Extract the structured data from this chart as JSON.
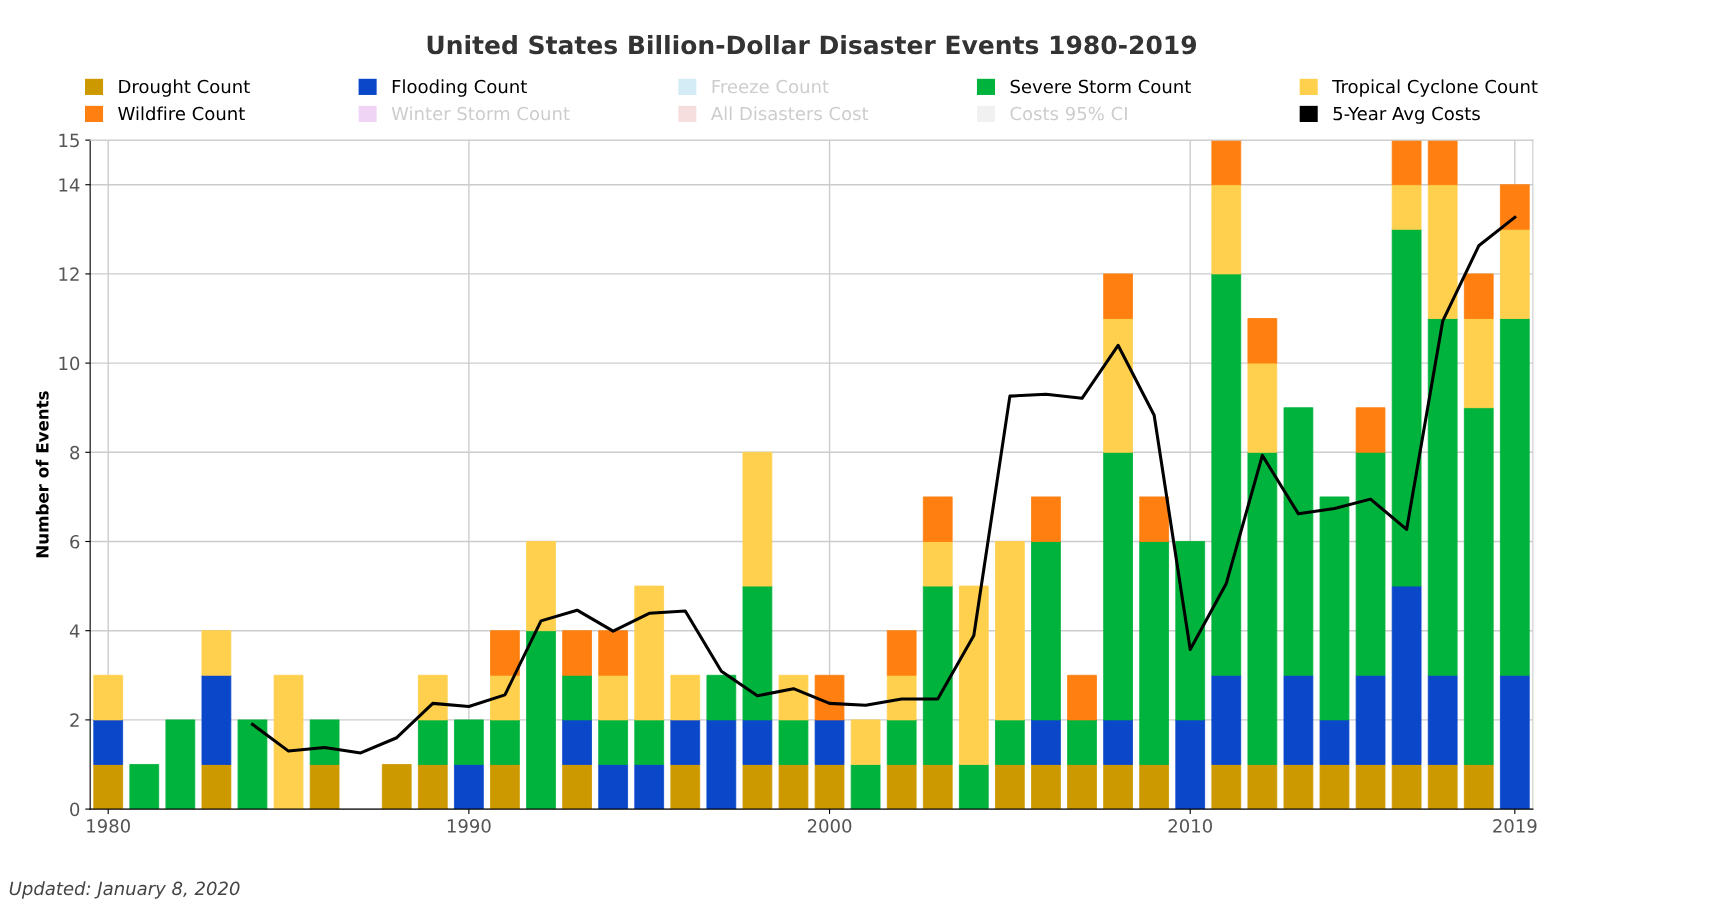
{
  "chart_data": {
    "type": "bar",
    "stacked": true,
    "title": "United States Billion-Dollar Disaster Events 1980-2019",
    "ylabel": "Number of Events",
    "x": [
      1980,
      1981,
      1982,
      1983,
      1984,
      1985,
      1986,
      1987,
      1988,
      1989,
      1990,
      1991,
      1992,
      1993,
      1994,
      1995,
      1996,
      1997,
      1998,
      1999,
      2000,
      2001,
      2002,
      2003,
      2004,
      2005,
      2006,
      2007,
      2008,
      2009,
      2010,
      2011,
      2012,
      2013,
      2014,
      2015,
      2016,
      2017,
      2018,
      2019
    ],
    "series": [
      {
        "name": "Drought Count",
        "color": "#cc9900",
        "values": [
          1,
          0,
          0,
          1,
          0,
          0,
          1,
          0,
          1,
          1,
          0,
          1,
          0,
          1,
          0,
          0,
          1,
          0,
          1,
          1,
          1,
          0,
          1,
          1,
          0,
          1,
          1,
          1,
          1,
          1,
          0,
          1,
          1,
          1,
          1,
          1,
          1,
          1,
          1,
          0
        ]
      },
      {
        "name": "Flooding Count",
        "color": "#0a47c9",
        "values": [
          1,
          0,
          0,
          2,
          0,
          0,
          0,
          0,
          0,
          0,
          1,
          0,
          0,
          1,
          1,
          1,
          1,
          2,
          1,
          0,
          1,
          0,
          0,
          0,
          0,
          0,
          1,
          0,
          1,
          0,
          2,
          2,
          0,
          2,
          1,
          2,
          4,
          2,
          0,
          3
        ]
      },
      {
        "name": "Freeze Count",
        "color": "#b8e0f0",
        "values": [
          null,
          null,
          null,
          null,
          null,
          null,
          null,
          null,
          null,
          null,
          null,
          null,
          null,
          null,
          null,
          null,
          null,
          null,
          null,
          null,
          null,
          null,
          null,
          null,
          null,
          null,
          null,
          null,
          null,
          null,
          null,
          null,
          null,
          null,
          null,
          null,
          null,
          null,
          null,
          null
        ]
      },
      {
        "name": "Severe Storm Count",
        "color": "#00b33c",
        "values": [
          0,
          1,
          2,
          0,
          2,
          0,
          1,
          0,
          0,
          1,
          1,
          1,
          4,
          1,
          1,
          1,
          0,
          1,
          3,
          1,
          0,
          1,
          1,
          4,
          1,
          1,
          4,
          1,
          6,
          5,
          4,
          9,
          7,
          6,
          5,
          5,
          8,
          8,
          8,
          8
        ]
      },
      {
        "name": "Tropical Cyclone Count",
        "color": "#ffd04d",
        "values": [
          1,
          0,
          0,
          1,
          0,
          3,
          0,
          0,
          0,
          1,
          0,
          1,
          2,
          0,
          1,
          3,
          1,
          0,
          3,
          1,
          0,
          1,
          1,
          1,
          4,
          4,
          0,
          0,
          3,
          0,
          0,
          2,
          2,
          0,
          0,
          0,
          1,
          3,
          2,
          2
        ]
      },
      {
        "name": "Wildfire Count",
        "color": "#ff8010",
        "values": [
          0,
          0,
          0,
          0,
          0,
          0,
          0,
          0,
          0,
          0,
          0,
          1,
          0,
          1,
          1,
          0,
          0,
          0,
          0,
          0,
          1,
          0,
          1,
          1,
          0,
          0,
          1,
          1,
          1,
          1,
          0,
          1,
          1,
          0,
          0,
          1,
          1,
          1,
          1,
          1
        ]
      },
      {
        "name": "Winter Storm Count",
        "color": "#e6b8f0",
        "values": [
          null,
          null,
          null,
          null,
          null,
          null,
          null,
          null,
          null,
          null,
          null,
          null,
          null,
          null,
          null,
          null,
          null,
          null,
          null,
          null,
          null,
          null,
          null,
          null,
          null,
          null,
          null,
          null,
          null,
          null,
          null,
          null,
          null,
          null,
          null,
          null,
          null,
          null,
          null,
          null
        ]
      },
      {
        "name": "All Disasters Cost",
        "color": "#f0c8c8",
        "values": [
          null,
          null,
          null,
          null,
          null,
          null,
          null,
          null,
          null,
          null,
          null,
          null,
          null,
          null,
          null,
          null,
          null,
          null,
          null,
          null,
          null,
          null,
          null,
          null,
          null,
          null,
          null,
          null,
          null,
          null,
          null,
          null,
          null,
          null,
          null,
          null,
          null,
          null,
          null,
          null
        ]
      },
      {
        "name": "Costs 95% CI",
        "color": "#e8e8e8",
        "values": [
          null,
          null,
          null,
          null,
          null,
          null,
          null,
          null,
          null,
          null,
          null,
          null,
          null,
          null,
          null,
          null,
          null,
          null,
          null,
          null,
          null,
          null,
          null,
          null,
          null,
          null,
          null,
          null,
          null,
          null,
          null,
          null,
          null,
          null,
          null,
          null,
          null,
          null,
          null,
          null
        ]
      },
      {
        "name": "5-Year Avg Costs",
        "color": "#000000",
        "type": "line",
        "values": [
          null,
          null,
          null,
          null,
          1.9,
          1.3,
          1.38,
          1.26,
          1.6,
          2.37,
          2.3,
          2.56,
          4.22,
          4.46,
          3.99,
          4.39,
          4.44,
          3.09,
          2.54,
          2.7,
          2.37,
          2.33,
          2.47,
          2.47,
          3.89,
          9.26,
          9.3,
          9.21,
          10.4,
          8.83,
          3.58,
          5.06,
          7.93,
          6.62,
          6.74,
          6.95,
          6.27,
          10.94,
          12.63,
          13.27
        ]
      }
    ],
    "xlim": [
      1979.5,
      2019.5
    ],
    "xticks": [
      1980,
      1990,
      2000,
      2010,
      2019
    ],
    "ylim": [
      0,
      15
    ],
    "yticks": [
      0,
      2,
      4,
      6,
      8,
      10,
      12,
      14,
      15
    ],
    "grid": true,
    "legend": "top",
    "annotations": [
      "Updated: January 8, 2020"
    ]
  }
}
